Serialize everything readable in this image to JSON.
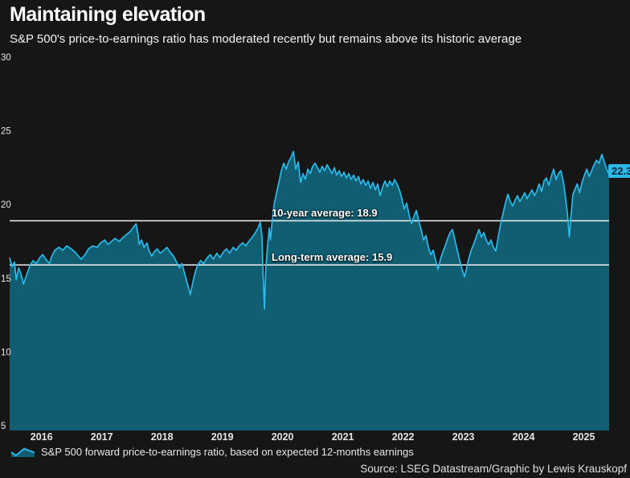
{
  "header": {
    "title": "Maintaining elevation",
    "subtitle": "S&P 500's price-to-earnings ratio has moderated recently but remains above its historic average"
  },
  "legend": {
    "icon": "area-chart-icon",
    "label": "S&P 500 forward price-to-earnings ratio, based on expected 12-months earnings"
  },
  "source": "Source: LSEG Datastream/Graphic by Lewis Krauskopf",
  "colors": {
    "background": "#161616",
    "area_fill": "#115E73",
    "line": "#2BB9EA",
    "reference_line": "#F2F2F2",
    "axis_text": "#E6E6E6",
    "badge_bg": "#2BB9EA",
    "badge_text": "#0D2231"
  },
  "chart_data": {
    "type": "area",
    "title": "Maintaining elevation",
    "xlabel": "",
    "ylabel": "S&P 500 forward price-to-earnings ratio",
    "grid": false,
    "legend_position": "bottom-left",
    "xlim": [
      2015.97,
      2025.92
    ],
    "ylim": [
      5,
      30
    ],
    "y_ticks": [
      30,
      25,
      20,
      15,
      10,
      5
    ],
    "x_ticks": [
      2016,
      2017,
      2018,
      2019,
      2020,
      2021,
      2022,
      2023,
      2024,
      2025
    ],
    "x_tick_position": "mid_year",
    "reference_lines": [
      {
        "label": "10-year average: 18.9",
        "value": 18.9
      },
      {
        "label": "Long-term average: 15.9",
        "value": 15.9
      }
    ],
    "end_label": {
      "text": "22.3",
      "value": 22.3
    },
    "series": [
      {
        "name": "S&P 500 forward price-to-earnings ratio, based on expected 12-months earnings",
        "points": [
          [
            2015.97,
            16.4
          ],
          [
            2016.01,
            15.8
          ],
          [
            2016.05,
            16.1
          ],
          [
            2016.08,
            14.9
          ],
          [
            2016.12,
            15.7
          ],
          [
            2016.16,
            15.3
          ],
          [
            2016.2,
            14.6
          ],
          [
            2016.25,
            15.2
          ],
          [
            2016.31,
            15.9
          ],
          [
            2016.36,
            16.2
          ],
          [
            2016.41,
            16.0
          ],
          [
            2016.47,
            16.4
          ],
          [
            2016.52,
            16.6
          ],
          [
            2016.57,
            16.3
          ],
          [
            2016.63,
            16.0
          ],
          [
            2016.67,
            16.5
          ],
          [
            2016.72,
            16.9
          ],
          [
            2016.79,
            17.1
          ],
          [
            2016.85,
            16.9
          ],
          [
            2016.92,
            17.2
          ],
          [
            2016.99,
            17.0
          ],
          [
            2017.05,
            16.8
          ],
          [
            2017.11,
            16.5
          ],
          [
            2017.16,
            16.3
          ],
          [
            2017.22,
            16.6
          ],
          [
            2017.28,
            17.0
          ],
          [
            2017.35,
            17.2
          ],
          [
            2017.42,
            17.1
          ],
          [
            2017.48,
            17.4
          ],
          [
            2017.55,
            17.6
          ],
          [
            2017.6,
            17.3
          ],
          [
            2017.66,
            17.5
          ],
          [
            2017.72,
            17.7
          ],
          [
            2017.79,
            17.5
          ],
          [
            2017.86,
            17.8
          ],
          [
            2017.92,
            18.0
          ],
          [
            2017.98,
            18.2
          ],
          [
            2018.03,
            18.5
          ],
          [
            2018.07,
            18.7
          ],
          [
            2018.1,
            18.0
          ],
          [
            2018.12,
            17.3
          ],
          [
            2018.16,
            17.6
          ],
          [
            2018.2,
            17.1
          ],
          [
            2018.25,
            17.4
          ],
          [
            2018.28,
            16.9
          ],
          [
            2018.33,
            16.5
          ],
          [
            2018.37,
            16.8
          ],
          [
            2018.42,
            17.0
          ],
          [
            2018.47,
            16.7
          ],
          [
            2018.53,
            16.9
          ],
          [
            2018.58,
            17.1
          ],
          [
            2018.63,
            16.8
          ],
          [
            2018.69,
            16.5
          ],
          [
            2018.74,
            16.1
          ],
          [
            2018.79,
            15.7
          ],
          [
            2018.83,
            16.0
          ],
          [
            2018.87,
            15.4
          ],
          [
            2018.91,
            14.8
          ],
          [
            2018.97,
            13.9
          ],
          [
            2019.01,
            14.7
          ],
          [
            2019.05,
            15.4
          ],
          [
            2019.09,
            15.9
          ],
          [
            2019.14,
            16.2
          ],
          [
            2019.19,
            16.0
          ],
          [
            2019.25,
            16.4
          ],
          [
            2019.3,
            16.6
          ],
          [
            2019.35,
            16.3
          ],
          [
            2019.41,
            16.7
          ],
          [
            2019.46,
            16.4
          ],
          [
            2019.52,
            16.8
          ],
          [
            2019.57,
            17.0
          ],
          [
            2019.62,
            16.7
          ],
          [
            2019.68,
            17.1
          ],
          [
            2019.73,
            16.9
          ],
          [
            2019.78,
            17.2
          ],
          [
            2019.84,
            17.4
          ],
          [
            2019.89,
            17.2
          ],
          [
            2019.94,
            17.5
          ],
          [
            2020.0,
            17.8
          ],
          [
            2020.05,
            18.1
          ],
          [
            2020.09,
            18.4
          ],
          [
            2020.13,
            18.8
          ],
          [
            2020.16,
            17.8
          ],
          [
            2020.17,
            16.0
          ],
          [
            2020.2,
            12.9
          ],
          [
            2020.22,
            15.5
          ],
          [
            2020.25,
            17.2
          ],
          [
            2020.28,
            18.4
          ],
          [
            2020.3,
            17.6
          ],
          [
            2020.33,
            19.0
          ],
          [
            2020.36,
            20.0
          ],
          [
            2020.4,
            20.8
          ],
          [
            2020.44,
            21.5
          ],
          [
            2020.48,
            22.3
          ],
          [
            2020.52,
            22.8
          ],
          [
            2020.56,
            22.4
          ],
          [
            2020.6,
            22.9
          ],
          [
            2020.64,
            23.2
          ],
          [
            2020.68,
            23.6
          ],
          [
            2020.72,
            22.4
          ],
          [
            2020.76,
            22.9
          ],
          [
            2020.8,
            21.5
          ],
          [
            2020.84,
            22.1
          ],
          [
            2020.88,
            21.7
          ],
          [
            2020.92,
            22.4
          ],
          [
            2020.96,
            22.1
          ],
          [
            2021.0,
            22.6
          ],
          [
            2021.04,
            22.8
          ],
          [
            2021.08,
            22.5
          ],
          [
            2021.12,
            22.2
          ],
          [
            2021.16,
            22.6
          ],
          [
            2021.2,
            22.3
          ],
          [
            2021.24,
            22.7
          ],
          [
            2021.28,
            22.4
          ],
          [
            2021.32,
            22.1
          ],
          [
            2021.36,
            22.5
          ],
          [
            2021.4,
            22.0
          ],
          [
            2021.44,
            22.3
          ],
          [
            2021.48,
            21.9
          ],
          [
            2021.52,
            22.2
          ],
          [
            2021.56,
            21.8
          ],
          [
            2021.6,
            22.1
          ],
          [
            2021.64,
            21.7
          ],
          [
            2021.68,
            22.0
          ],
          [
            2021.72,
            21.6
          ],
          [
            2021.76,
            21.9
          ],
          [
            2021.8,
            21.4
          ],
          [
            2021.84,
            21.7
          ],
          [
            2021.88,
            21.3
          ],
          [
            2021.92,
            21.6
          ],
          [
            2021.96,
            21.1
          ],
          [
            2022.0,
            21.5
          ],
          [
            2022.04,
            21.0
          ],
          [
            2022.08,
            21.4
          ],
          [
            2022.12,
            20.6
          ],
          [
            2022.16,
            21.2
          ],
          [
            2022.2,
            21.6
          ],
          [
            2022.24,
            21.2
          ],
          [
            2022.28,
            21.6
          ],
          [
            2022.32,
            21.3
          ],
          [
            2022.36,
            21.7
          ],
          [
            2022.4,
            21.4
          ],
          [
            2022.44,
            21.0
          ],
          [
            2022.48,
            20.4
          ],
          [
            2022.52,
            19.7
          ],
          [
            2022.56,
            20.1
          ],
          [
            2022.6,
            19.3
          ],
          [
            2022.64,
            18.7
          ],
          [
            2022.68,
            19.2
          ],
          [
            2022.72,
            19.6
          ],
          [
            2022.76,
            18.9
          ],
          [
            2022.8,
            18.3
          ],
          [
            2022.84,
            17.6
          ],
          [
            2022.88,
            17.9
          ],
          [
            2022.92,
            17.1
          ],
          [
            2022.96,
            16.6
          ],
          [
            2023.0,
            16.9
          ],
          [
            2023.04,
            16.2
          ],
          [
            2023.08,
            15.6
          ],
          [
            2023.12,
            16.3
          ],
          [
            2023.16,
            16.8
          ],
          [
            2023.2,
            17.2
          ],
          [
            2023.24,
            17.7
          ],
          [
            2023.28,
            18.1
          ],
          [
            2023.32,
            18.3
          ],
          [
            2023.36,
            17.6
          ],
          [
            2023.4,
            16.9
          ],
          [
            2023.44,
            16.2
          ],
          [
            2023.48,
            15.6
          ],
          [
            2023.52,
            15.1
          ],
          [
            2023.56,
            15.8
          ],
          [
            2023.6,
            16.5
          ],
          [
            2023.64,
            17.0
          ],
          [
            2023.68,
            17.4
          ],
          [
            2023.72,
            17.9
          ],
          [
            2023.76,
            18.3
          ],
          [
            2023.8,
            17.8
          ],
          [
            2023.84,
            18.1
          ],
          [
            2023.88,
            17.6
          ],
          [
            2023.92,
            17.3
          ],
          [
            2023.96,
            17.6
          ],
          [
            2024.0,
            17.1
          ],
          [
            2024.04,
            16.85
          ],
          [
            2024.08,
            17.8
          ],
          [
            2024.12,
            18.7
          ],
          [
            2024.16,
            19.4
          ],
          [
            2024.2,
            20.1
          ],
          [
            2024.24,
            20.7
          ],
          [
            2024.28,
            20.2
          ],
          [
            2024.32,
            19.9
          ],
          [
            2024.36,
            20.3
          ],
          [
            2024.4,
            20.6
          ],
          [
            2024.44,
            20.2
          ],
          [
            2024.48,
            20.5
          ],
          [
            2024.52,
            20.8
          ],
          [
            2024.56,
            20.4
          ],
          [
            2024.6,
            20.7
          ],
          [
            2024.64,
            21.0
          ],
          [
            2024.68,
            20.6
          ],
          [
            2024.72,
            20.9
          ],
          [
            2024.76,
            21.4
          ],
          [
            2024.8,
            20.9
          ],
          [
            2024.84,
            21.6
          ],
          [
            2024.88,
            21.8
          ],
          [
            2024.92,
            21.3
          ],
          [
            2024.96,
            21.9
          ],
          [
            2025.0,
            22.4
          ],
          [
            2025.04,
            21.7
          ],
          [
            2025.08,
            22.1
          ],
          [
            2025.12,
            22.3
          ],
          [
            2025.16,
            21.6
          ],
          [
            2025.2,
            20.4
          ],
          [
            2025.23,
            19.3
          ],
          [
            2025.26,
            17.8
          ],
          [
            2025.28,
            18.9
          ],
          [
            2025.32,
            20.7
          ],
          [
            2025.36,
            21.1
          ],
          [
            2025.39,
            21.4
          ],
          [
            2025.43,
            20.8
          ],
          [
            2025.47,
            21.5
          ],
          [
            2025.51,
            22.0
          ],
          [
            2025.55,
            22.4
          ],
          [
            2025.59,
            21.9
          ],
          [
            2025.63,
            22.3
          ],
          [
            2025.67,
            22.7
          ],
          [
            2025.71,
            23.0
          ],
          [
            2025.75,
            22.8
          ],
          [
            2025.8,
            23.4
          ],
          [
            2025.84,
            22.9
          ],
          [
            2025.87,
            22.5
          ],
          [
            2025.9,
            22.2
          ],
          [
            2025.92,
            22.3
          ]
        ]
      }
    ]
  }
}
